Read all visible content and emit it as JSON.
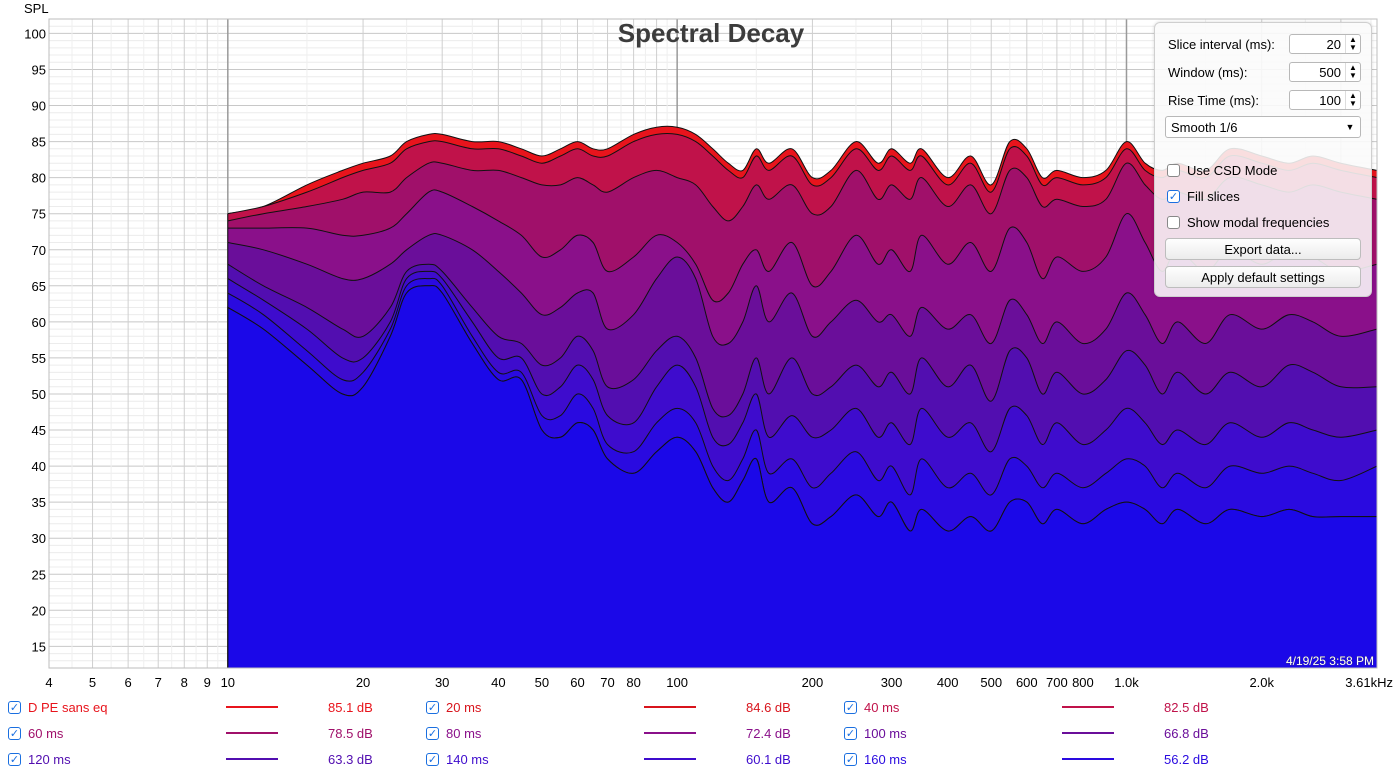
{
  "chart_data": {
    "type": "area",
    "title": "Spectral Decay",
    "ylabel": "SPL",
    "xlabel": "",
    "x_scale": "log",
    "xlim": [
      4,
      3610
    ],
    "ylim": [
      12,
      102
    ],
    "yticks": [
      15,
      20,
      25,
      30,
      35,
      40,
      45,
      50,
      55,
      60,
      65,
      70,
      75,
      80,
      85,
      90,
      95,
      100
    ],
    "xticks": [
      {
        "v": 4,
        "l": "4"
      },
      {
        "v": 5,
        "l": "5"
      },
      {
        "v": 6,
        "l": "6"
      },
      {
        "v": 7,
        "l": "7"
      },
      {
        "v": 8,
        "l": "8"
      },
      {
        "v": 9,
        "l": "9"
      },
      {
        "v": 10,
        "l": "10"
      },
      {
        "v": 20,
        "l": "20"
      },
      {
        "v": 30,
        "l": "30"
      },
      {
        "v": 40,
        "l": "40"
      },
      {
        "v": 50,
        "l": "50"
      },
      {
        "v": 60,
        "l": "60"
      },
      {
        "v": 70,
        "l": "70"
      },
      {
        "v": 80,
        "l": "80"
      },
      {
        "v": 100,
        "l": "100"
      },
      {
        "v": 200,
        "l": "200"
      },
      {
        "v": 300,
        "l": "300"
      },
      {
        "v": 400,
        "l": "400"
      },
      {
        "v": 500,
        "l": "500"
      },
      {
        "v": 600,
        "l": "600"
      },
      {
        "v": 700,
        "l": "700"
      },
      {
        "v": 800,
        "l": "800"
      },
      {
        "v": 1000,
        "l": "1.0k"
      },
      {
        "v": 2000,
        "l": "2.0k"
      },
      {
        "v": 3610,
        "l": "3.61kHz"
      }
    ],
    "x": [
      10,
      12,
      15,
      18,
      20,
      23,
      25,
      28,
      30,
      35,
      40,
      45,
      50,
      55,
      60,
      65,
      70,
      80,
      90,
      100,
      110,
      120,
      130,
      140,
      150,
      160,
      180,
      200,
      220,
      250,
      280,
      300,
      330,
      350,
      400,
      450,
      500,
      550,
      600,
      650,
      700,
      800,
      900,
      1000,
      1100,
      1200,
      1300,
      1500,
      1700,
      2000,
      2300,
      2600,
      3000,
      3610
    ],
    "series": [
      {
        "name": "D PE sans eq",
        "color": "#e8141c",
        "values": [
          75,
          76,
          79,
          81,
          82,
          83,
          85,
          86,
          86,
          85,
          85,
          84,
          83,
          84,
          85,
          84,
          84,
          86,
          87,
          87,
          86,
          84,
          82,
          81,
          84,
          82,
          84,
          80,
          81,
          85,
          82,
          84,
          82,
          84,
          80,
          83,
          79,
          85,
          84,
          80,
          81,
          80,
          81,
          85,
          82,
          81,
          82,
          81,
          84,
          83,
          82,
          83,
          82,
          81
        ]
      },
      {
        "name": "20 ms",
        "color": "#d8141c",
        "values": [
          75,
          76,
          78,
          80,
          81,
          82,
          84,
          85,
          85,
          84,
          84,
          83,
          82,
          83,
          84,
          83,
          83,
          85,
          86,
          86,
          85,
          83,
          81,
          80,
          83,
          81,
          83,
          79,
          80,
          84,
          81,
          83,
          81,
          83,
          79,
          82,
          78,
          84,
          83,
          79,
          80,
          79,
          80,
          84,
          81,
          80,
          81,
          80,
          83,
          82,
          81,
          82,
          81,
          80
        ]
      },
      {
        "name": "40 ms",
        "color": "#c0124a",
        "values": [
          74,
          75,
          76,
          77,
          78,
          78,
          80,
          82,
          82,
          81,
          81,
          80,
          79,
          79,
          80,
          79,
          78,
          80,
          81,
          80,
          79,
          76,
          74,
          76,
          79,
          77,
          79,
          75,
          76,
          81,
          77,
          79,
          77,
          80,
          76,
          79,
          75,
          81,
          80,
          76,
          77,
          76,
          77,
          82,
          79,
          77,
          78,
          77,
          80,
          79,
          78,
          79,
          78,
          77
        ]
      },
      {
        "name": "60 ms",
        "color": "#a0106a",
        "values": [
          73,
          73,
          73,
          72,
          72,
          73,
          75,
          78,
          78,
          76,
          74,
          72,
          69,
          70,
          72,
          71,
          67,
          69,
          72,
          71,
          68,
          63,
          64,
          68,
          70,
          67,
          71,
          65,
          67,
          72,
          68,
          70,
          67,
          72,
          68,
          71,
          67,
          73,
          71,
          66,
          69,
          67,
          69,
          75,
          71,
          67,
          70,
          67,
          70,
          68,
          70,
          69,
          67,
          68
        ]
      },
      {
        "name": "80 ms",
        "color": "#8a108a",
        "values": [
          71,
          70,
          68,
          66,
          66,
          68,
          70,
          72,
          72,
          70,
          67,
          64,
          61,
          62,
          64,
          64,
          59,
          61,
          66,
          69,
          66,
          58,
          57,
          60,
          65,
          60,
          64,
          58,
          60,
          63,
          60,
          61,
          58,
          62,
          59,
          61,
          57,
          63,
          61,
          57,
          60,
          57,
          59,
          64,
          61,
          57,
          60,
          57,
          61,
          59,
          61,
          60,
          58,
          59
        ]
      },
      {
        "name": "100 ms",
        "color": "#6a0e9a",
        "values": [
          68,
          65,
          62,
          59,
          58,
          62,
          67,
          68,
          67,
          62,
          58,
          57,
          54,
          55,
          58,
          56,
          51,
          52,
          56,
          58,
          55,
          48,
          47,
          50,
          55,
          50,
          55,
          50,
          51,
          54,
          51,
          53,
          50,
          55,
          51,
          54,
          49,
          56,
          55,
          50,
          53,
          50,
          52,
          56,
          54,
          50,
          53,
          50,
          53,
          51,
          54,
          53,
          51,
          51
        ]
      },
      {
        "name": "120 ms",
        "color": "#520eb0",
        "values": [
          66,
          63,
          59,
          55,
          55,
          60,
          66,
          67,
          66,
          60,
          55,
          55,
          50,
          51,
          54,
          52,
          47,
          46,
          51,
          54,
          51,
          44,
          43,
          46,
          50,
          44,
          47,
          44,
          45,
          48,
          44,
          46,
          43,
          48,
          44,
          46,
          42,
          48,
          47,
          43,
          46,
          43,
          45,
          48,
          46,
          43,
          45,
          43,
          46,
          44,
          46,
          45,
          44,
          45
        ]
      },
      {
        "name": "140 ms",
        "color": "#3e0ccd",
        "values": [
          64,
          61,
          56,
          52,
          53,
          59,
          65,
          66,
          65,
          58,
          53,
          53,
          47,
          47,
          50,
          48,
          43,
          42,
          46,
          48,
          46,
          40,
          38,
          41,
          45,
          39,
          41,
          37,
          39,
          42,
          38,
          40,
          36,
          41,
          37,
          39,
          36,
          41,
          40,
          37,
          39,
          37,
          39,
          41,
          40,
          37,
          39,
          37,
          40,
          39,
          40,
          39,
          38,
          40
        ]
      },
      {
        "name": "160 ms",
        "color": "#2a0ae0",
        "values": [
          62,
          59,
          54,
          50,
          51,
          58,
          64,
          65,
          64,
          57,
          52,
          52,
          45,
          44,
          46,
          45,
          41,
          39,
          42,
          44,
          42,
          37,
          35,
          38,
          41,
          35,
          37,
          32,
          33,
          36,
          33,
          35,
          31,
          34,
          31,
          33,
          31,
          35,
          35,
          32,
          34,
          32,
          34,
          35,
          34,
          32,
          34,
          32,
          34,
          33,
          34,
          33,
          33,
          33
        ]
      }
    ]
  },
  "legend": [
    {
      "name": "D PE sans eq",
      "db": "85.1 dB",
      "color": "#e8141c"
    },
    {
      "name": "20 ms",
      "db": "84.6 dB",
      "color": "#d8141c"
    },
    {
      "name": "40 ms",
      "db": "82.5 dB",
      "color": "#c0124a"
    },
    {
      "name": "60 ms",
      "db": "78.5 dB",
      "color": "#a0106a"
    },
    {
      "name": "80 ms",
      "db": "72.4 dB",
      "color": "#8a108a"
    },
    {
      "name": "100 ms",
      "db": "66.8 dB",
      "color": "#6a0e9a"
    },
    {
      "name": "120 ms",
      "db": "63.3 dB",
      "color": "#520eb0"
    },
    {
      "name": "140 ms",
      "db": "60.1 dB",
      "color": "#3e0ccd"
    },
    {
      "name": "160 ms",
      "db": "56.2 dB",
      "color": "#2a0ae0"
    }
  ],
  "base_color": "#1b08e8",
  "timestamp": "4/19/25 3:58 PM",
  "panel": {
    "slice_label": "Slice interval (ms):",
    "slice_value": "20",
    "window_label": "Window (ms):",
    "window_value": "500",
    "rise_label": "Rise Time (ms):",
    "rise_value": "100",
    "smoothing": "Smooth 1/6",
    "csd_label": "Use CSD Mode",
    "csd_checked": false,
    "fill_label": "Fill slices",
    "fill_checked": true,
    "modal_label": "Show modal frequencies",
    "modal_checked": false,
    "export_label": "Export data...",
    "defaults_label": "Apply default settings"
  }
}
